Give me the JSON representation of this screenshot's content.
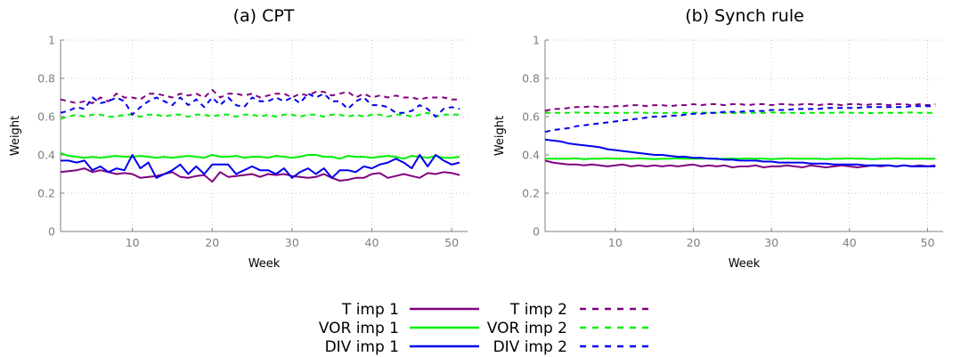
{
  "chart_data": [
    {
      "type": "line",
      "title": "(a) CPT",
      "xlabel": "Week",
      "ylabel": "Weight",
      "xlim": [
        1,
        52
      ],
      "ylim": [
        0,
        1
      ],
      "x_ticks": [
        10,
        20,
        30,
        40,
        50
      ],
      "y_ticks": [
        0,
        0.2,
        0.4,
        0.6,
        0.8,
        1
      ],
      "y_tick_labels": [
        "0",
        "0.2",
        "0.4",
        "0.6",
        "0.8",
        "1"
      ],
      "grid": true,
      "x": [
        1,
        2,
        3,
        4,
        5,
        6,
        7,
        8,
        9,
        10,
        11,
        12,
        13,
        14,
        15,
        16,
        17,
        18,
        19,
        20,
        21,
        22,
        23,
        24,
        25,
        26,
        27,
        28,
        29,
        30,
        31,
        32,
        33,
        34,
        35,
        36,
        37,
        38,
        39,
        40,
        41,
        42,
        43,
        44,
        45,
        46,
        47,
        48,
        49,
        50,
        51
      ],
      "series": [
        {
          "name": "T imp 1",
          "color": "#800080",
          "dash": false,
          "values": [
            0.31,
            0.315,
            0.32,
            0.33,
            0.31,
            0.32,
            0.31,
            0.3,
            0.305,
            0.3,
            0.28,
            0.285,
            0.29,
            0.3,
            0.31,
            0.285,
            0.28,
            0.29,
            0.295,
            0.26,
            0.31,
            0.285,
            0.29,
            0.295,
            0.3,
            0.285,
            0.3,
            0.295,
            0.3,
            0.29,
            0.285,
            0.28,
            0.285,
            0.3,
            0.28,
            0.265,
            0.27,
            0.28,
            0.28,
            0.3,
            0.305,
            0.28,
            0.29,
            0.3,
            0.29,
            0.28,
            0.305,
            0.3,
            0.31,
            0.305,
            0.295
          ]
        },
        {
          "name": "VOR imp 1",
          "color": "#00ee00",
          "dash": false,
          "values": [
            0.41,
            0.395,
            0.39,
            0.385,
            0.39,
            0.385,
            0.39,
            0.395,
            0.39,
            0.39,
            0.395,
            0.39,
            0.385,
            0.39,
            0.385,
            0.39,
            0.395,
            0.39,
            0.385,
            0.4,
            0.39,
            0.39,
            0.395,
            0.385,
            0.39,
            0.39,
            0.385,
            0.395,
            0.39,
            0.385,
            0.39,
            0.4,
            0.4,
            0.39,
            0.39,
            0.38,
            0.395,
            0.39,
            0.39,
            0.385,
            0.39,
            0.395,
            0.39,
            0.38,
            0.395,
            0.39,
            0.385,
            0.395,
            0.385,
            0.385,
            0.39
          ]
        },
        {
          "name": "DIV imp 1",
          "color": "#0000ee",
          "dash": false,
          "values": [
            0.37,
            0.37,
            0.36,
            0.37,
            0.32,
            0.34,
            0.31,
            0.33,
            0.32,
            0.4,
            0.33,
            0.36,
            0.28,
            0.3,
            0.32,
            0.35,
            0.3,
            0.34,
            0.3,
            0.35,
            0.35,
            0.35,
            0.3,
            0.32,
            0.34,
            0.32,
            0.32,
            0.3,
            0.33,
            0.28,
            0.31,
            0.33,
            0.3,
            0.33,
            0.28,
            0.32,
            0.32,
            0.31,
            0.34,
            0.33,
            0.35,
            0.36,
            0.38,
            0.36,
            0.33,
            0.4,
            0.34,
            0.4,
            0.37,
            0.35,
            0.36
          ]
        },
        {
          "name": "T imp 2",
          "color": "#800080",
          "dash": true,
          "values": [
            0.69,
            0.68,
            0.67,
            0.68,
            0.67,
            0.7,
            0.68,
            0.72,
            0.7,
            0.7,
            0.69,
            0.72,
            0.72,
            0.71,
            0.7,
            0.72,
            0.71,
            0.72,
            0.7,
            0.74,
            0.7,
            0.72,
            0.72,
            0.71,
            0.72,
            0.7,
            0.71,
            0.72,
            0.72,
            0.7,
            0.72,
            0.71,
            0.73,
            0.73,
            0.71,
            0.72,
            0.73,
            0.7,
            0.72,
            0.7,
            0.71,
            0.7,
            0.71,
            0.7,
            0.7,
            0.69,
            0.7,
            0.7,
            0.7,
            0.69,
            0.69
          ]
        },
        {
          "name": "VOR imp 2",
          "color": "#00ee00",
          "dash": true,
          "values": [
            0.59,
            0.6,
            0.61,
            0.6,
            0.61,
            0.61,
            0.6,
            0.6,
            0.61,
            0.61,
            0.6,
            0.61,
            0.61,
            0.6,
            0.61,
            0.61,
            0.6,
            0.61,
            0.61,
            0.6,
            0.61,
            0.61,
            0.6,
            0.61,
            0.61,
            0.6,
            0.61,
            0.6,
            0.61,
            0.61,
            0.6,
            0.61,
            0.61,
            0.6,
            0.61,
            0.61,
            0.6,
            0.61,
            0.6,
            0.61,
            0.61,
            0.6,
            0.61,
            0.61,
            0.6,
            0.61,
            0.62,
            0.6,
            0.61,
            0.61,
            0.61
          ]
        },
        {
          "name": "DIV imp 2",
          "color": "#0000ee",
          "dash": true,
          "values": [
            0.62,
            0.63,
            0.65,
            0.64,
            0.7,
            0.67,
            0.68,
            0.7,
            0.68,
            0.61,
            0.65,
            0.68,
            0.7,
            0.68,
            0.66,
            0.7,
            0.66,
            0.69,
            0.65,
            0.7,
            0.66,
            0.7,
            0.66,
            0.65,
            0.7,
            0.68,
            0.68,
            0.7,
            0.68,
            0.7,
            0.67,
            0.72,
            0.7,
            0.72,
            0.68,
            0.68,
            0.64,
            0.68,
            0.7,
            0.66,
            0.66,
            0.65,
            0.62,
            0.62,
            0.63,
            0.66,
            0.64,
            0.6,
            0.64,
            0.65,
            0.64
          ]
        }
      ]
    },
    {
      "type": "line",
      "title": "(b) Synch  rule",
      "xlabel": "Week",
      "ylabel": "Weight",
      "xlim": [
        1,
        52
      ],
      "ylim": [
        0,
        1
      ],
      "x_ticks": [
        10,
        20,
        30,
        40,
        50
      ],
      "y_ticks": [
        0,
        0.2,
        0.4,
        0.6,
        0.8,
        1
      ],
      "y_tick_labels": [
        "0",
        "0.2",
        "0.4",
        "0.6",
        "0.8",
        "1"
      ],
      "grid": true,
      "x": [
        1,
        2,
        3,
        4,
        5,
        6,
        7,
        8,
        9,
        10,
        11,
        12,
        13,
        14,
        15,
        16,
        17,
        18,
        19,
        20,
        21,
        22,
        23,
        24,
        25,
        26,
        27,
        28,
        29,
        30,
        31,
        32,
        33,
        34,
        35,
        36,
        37,
        38,
        39,
        40,
        41,
        42,
        43,
        44,
        45,
        46,
        47,
        48,
        49,
        50,
        51
      ],
      "series": [
        {
          "name": "T imp 1",
          "color": "#800080",
          "dash": false,
          "values": [
            0.37,
            0.36,
            0.355,
            0.35,
            0.35,
            0.345,
            0.35,
            0.345,
            0.34,
            0.345,
            0.35,
            0.34,
            0.345,
            0.34,
            0.345,
            0.34,
            0.345,
            0.34,
            0.345,
            0.35,
            0.34,
            0.345,
            0.34,
            0.345,
            0.335,
            0.34,
            0.34,
            0.345,
            0.335,
            0.34,
            0.34,
            0.345,
            0.34,
            0.335,
            0.345,
            0.34,
            0.335,
            0.34,
            0.345,
            0.34,
            0.335,
            0.34,
            0.345,
            0.34,
            0.345,
            0.34,
            0.345,
            0.34,
            0.345,
            0.34,
            0.345
          ]
        },
        {
          "name": "VOR imp 1",
          "color": "#00ee00",
          "dash": false,
          "values": [
            0.38,
            0.38,
            0.38,
            0.38,
            0.382,
            0.378,
            0.38,
            0.38,
            0.382,
            0.38,
            0.38,
            0.38,
            0.382,
            0.38,
            0.378,
            0.38,
            0.38,
            0.382,
            0.38,
            0.38,
            0.38,
            0.382,
            0.378,
            0.38,
            0.38,
            0.38,
            0.382,
            0.38,
            0.38,
            0.378,
            0.38,
            0.382,
            0.38,
            0.38,
            0.38,
            0.38,
            0.378,
            0.38,
            0.38,
            0.382,
            0.38,
            0.38,
            0.378,
            0.38,
            0.38,
            0.382,
            0.38,
            0.38,
            0.38,
            0.38,
            0.38
          ]
        },
        {
          "name": "DIV imp 1",
          "color": "#0000ee",
          "dash": false,
          "values": [
            0.48,
            0.475,
            0.47,
            0.46,
            0.455,
            0.45,
            0.445,
            0.44,
            0.43,
            0.425,
            0.42,
            0.415,
            0.41,
            0.405,
            0.4,
            0.4,
            0.395,
            0.39,
            0.39,
            0.385,
            0.385,
            0.38,
            0.38,
            0.375,
            0.375,
            0.37,
            0.37,
            0.37,
            0.365,
            0.365,
            0.36,
            0.36,
            0.36,
            0.36,
            0.355,
            0.355,
            0.355,
            0.35,
            0.35,
            0.35,
            0.35,
            0.345,
            0.345,
            0.345,
            0.345,
            0.34,
            0.345,
            0.34,
            0.34,
            0.34,
            0.34
          ]
        },
        {
          "name": "T imp 2",
          "color": "#800080",
          "dash": true,
          "values": [
            0.63,
            0.64,
            0.64,
            0.645,
            0.65,
            0.65,
            0.655,
            0.65,
            0.65,
            0.655,
            0.655,
            0.66,
            0.66,
            0.655,
            0.66,
            0.66,
            0.655,
            0.66,
            0.66,
            0.665,
            0.66,
            0.665,
            0.665,
            0.66,
            0.665,
            0.665,
            0.66,
            0.665,
            0.665,
            0.66,
            0.665,
            0.665,
            0.66,
            0.665,
            0.665,
            0.66,
            0.665,
            0.665,
            0.66,
            0.665,
            0.665,
            0.66,
            0.665,
            0.665,
            0.66,
            0.665,
            0.665,
            0.66,
            0.665,
            0.66,
            0.665
          ]
        },
        {
          "name": "VOR imp 2",
          "color": "#00ee00",
          "dash": true,
          "values": [
            0.62,
            0.62,
            0.62,
            0.62,
            0.622,
            0.62,
            0.62,
            0.62,
            0.618,
            0.62,
            0.62,
            0.62,
            0.622,
            0.62,
            0.62,
            0.618,
            0.62,
            0.62,
            0.62,
            0.62,
            0.622,
            0.62,
            0.62,
            0.62,
            0.618,
            0.62,
            0.62,
            0.62,
            0.62,
            0.622,
            0.62,
            0.62,
            0.62,
            0.618,
            0.62,
            0.62,
            0.62,
            0.62,
            0.622,
            0.62,
            0.62,
            0.62,
            0.618,
            0.62,
            0.62,
            0.62,
            0.62,
            0.622,
            0.62,
            0.62,
            0.62
          ]
        },
        {
          "name": "DIV imp 2",
          "color": "#0000ee",
          "dash": true,
          "values": [
            0.52,
            0.53,
            0.535,
            0.54,
            0.55,
            0.555,
            0.56,
            0.565,
            0.57,
            0.575,
            0.58,
            0.585,
            0.59,
            0.595,
            0.6,
            0.6,
            0.605,
            0.605,
            0.61,
            0.615,
            0.615,
            0.62,
            0.62,
            0.625,
            0.625,
            0.625,
            0.63,
            0.63,
            0.63,
            0.635,
            0.635,
            0.635,
            0.64,
            0.64,
            0.64,
            0.64,
            0.645,
            0.645,
            0.645,
            0.645,
            0.645,
            0.65,
            0.65,
            0.65,
            0.65,
            0.65,
            0.65,
            0.655,
            0.655,
            0.655,
            0.655
          ]
        }
      ]
    }
  ],
  "legend": {
    "items": [
      {
        "label": "T imp 1",
        "color": "#800080",
        "dash": false
      },
      {
        "label": "VOR imp 1",
        "color": "#00ee00",
        "dash": false
      },
      {
        "label": "DIV imp 1",
        "color": "#0000ee",
        "dash": false
      },
      {
        "label": "T imp 2",
        "color": "#800080",
        "dash": true
      },
      {
        "label": "VOR imp 2",
        "color": "#00ee00",
        "dash": true
      },
      {
        "label": "DIV imp 2",
        "color": "#0000ee",
        "dash": true
      }
    ]
  },
  "colors": {
    "grid": "#c8c8c8",
    "axis": "#7f7f7f",
    "tick_text": "#7f7f7f"
  }
}
